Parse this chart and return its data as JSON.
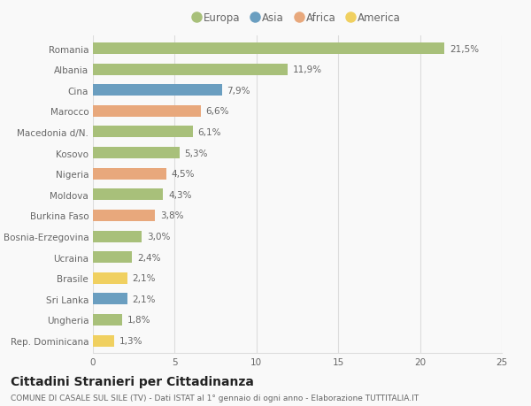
{
  "categories": [
    "Romania",
    "Albania",
    "Cina",
    "Marocco",
    "Macedonia d/N.",
    "Kosovo",
    "Nigeria",
    "Moldova",
    "Burkina Faso",
    "Bosnia-Erzegovina",
    "Ucraina",
    "Brasile",
    "Sri Lanka",
    "Ungheria",
    "Rep. Dominicana"
  ],
  "values": [
    21.5,
    11.9,
    7.9,
    6.6,
    6.1,
    5.3,
    4.5,
    4.3,
    3.8,
    3.0,
    2.4,
    2.1,
    2.1,
    1.8,
    1.3
  ],
  "labels": [
    "21,5%",
    "11,9%",
    "7,9%",
    "6,6%",
    "6,1%",
    "5,3%",
    "4,5%",
    "4,3%",
    "3,8%",
    "3,0%",
    "2,4%",
    "2,1%",
    "2,1%",
    "1,8%",
    "1,3%"
  ],
  "continent": [
    "Europa",
    "Europa",
    "Asia",
    "Africa",
    "Europa",
    "Europa",
    "Africa",
    "Europa",
    "Africa",
    "Europa",
    "Europa",
    "America",
    "Asia",
    "Europa",
    "America"
  ],
  "colors": {
    "Europa": "#a8c07a",
    "Asia": "#6a9ec0",
    "Africa": "#e8a87c",
    "America": "#f0d060"
  },
  "legend_order": [
    "Europa",
    "Asia",
    "Africa",
    "America"
  ],
  "xlim": [
    0,
    25
  ],
  "xticks": [
    0,
    5,
    10,
    15,
    20,
    25
  ],
  "title": "Cittadini Stranieri per Cittadinanza",
  "subtitle": "COMUNE DI CASALE SUL SILE (TV) - Dati ISTAT al 1° gennaio di ogni anno - Elaborazione TUTTITALIA.IT",
  "background_color": "#f9f9f9",
  "bar_height": 0.55,
  "grid_color": "#dddddd",
  "label_fontsize": 7.5,
  "tick_fontsize": 7.5,
  "title_fontsize": 10,
  "subtitle_fontsize": 6.5
}
